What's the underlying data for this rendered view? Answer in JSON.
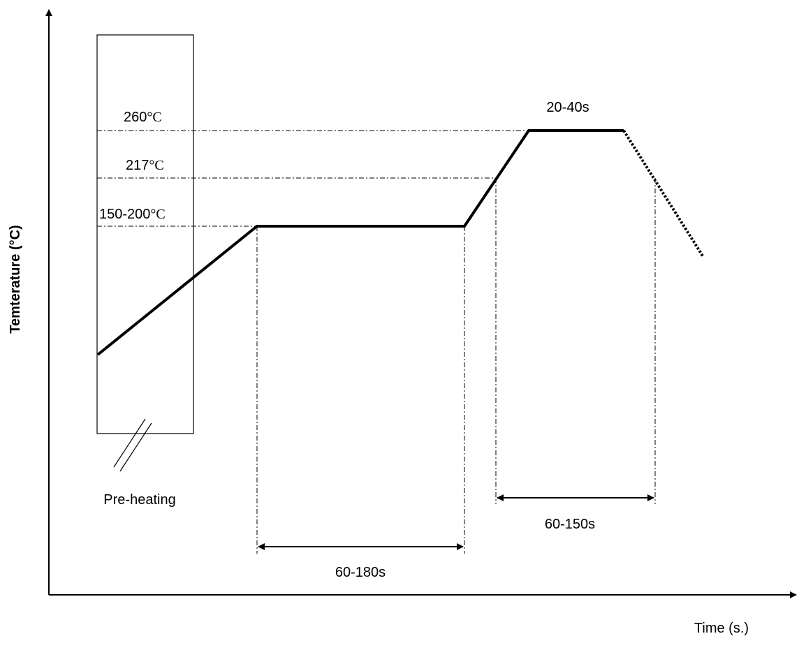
{
  "diagram": {
    "axes": {
      "y_label": "Temterature (°C)",
      "x_label": "Time (s.)"
    },
    "temperature_levels": {
      "peak": {
        "value": "260",
        "unit": "°C"
      },
      "liquidus": {
        "value": "217",
        "unit": "°C"
      },
      "soak": {
        "value": "150-200",
        "unit": "°C"
      }
    },
    "zones": {
      "preheat_label": "Pre-heating",
      "soak_duration": "60-180s",
      "above_liquidus_duration": "60-150s",
      "peak_duration": "20-40s"
    },
    "colors": {
      "line": "#000000",
      "background": "#ffffff"
    }
  }
}
